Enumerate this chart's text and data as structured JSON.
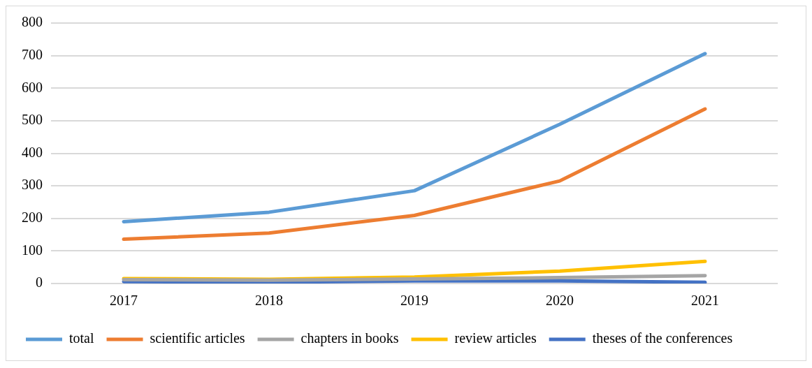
{
  "chart_data": {
    "type": "line",
    "categories": [
      "2017",
      "2018",
      "2019",
      "2020",
      "2021"
    ],
    "series": [
      {
        "name": "total",
        "color": "#5b9bd5",
        "values": [
          190,
          219,
          285,
          489,
          706
        ]
      },
      {
        "name": "scientific articles",
        "color": "#ed7d31",
        "values": [
          136,
          155,
          209,
          315,
          536
        ]
      },
      {
        "name": "chapters in books",
        "color": "#a5a5a5",
        "values": [
          12,
          10,
          14,
          18,
          24
        ]
      },
      {
        "name": "review articles",
        "color": "#ffc000",
        "values": [
          15,
          13,
          20,
          38,
          68
        ]
      },
      {
        "name": "theses of the conferences",
        "color": "#4472c4",
        "values": [
          6,
          4,
          8,
          8,
          4
        ]
      }
    ],
    "ylim": [
      0,
      800
    ],
    "yticks": [
      0,
      100,
      200,
      300,
      400,
      500,
      600,
      700,
      800
    ],
    "grid": "y",
    "legend": "bottom",
    "marker": "none",
    "line_style": "solid"
  }
}
